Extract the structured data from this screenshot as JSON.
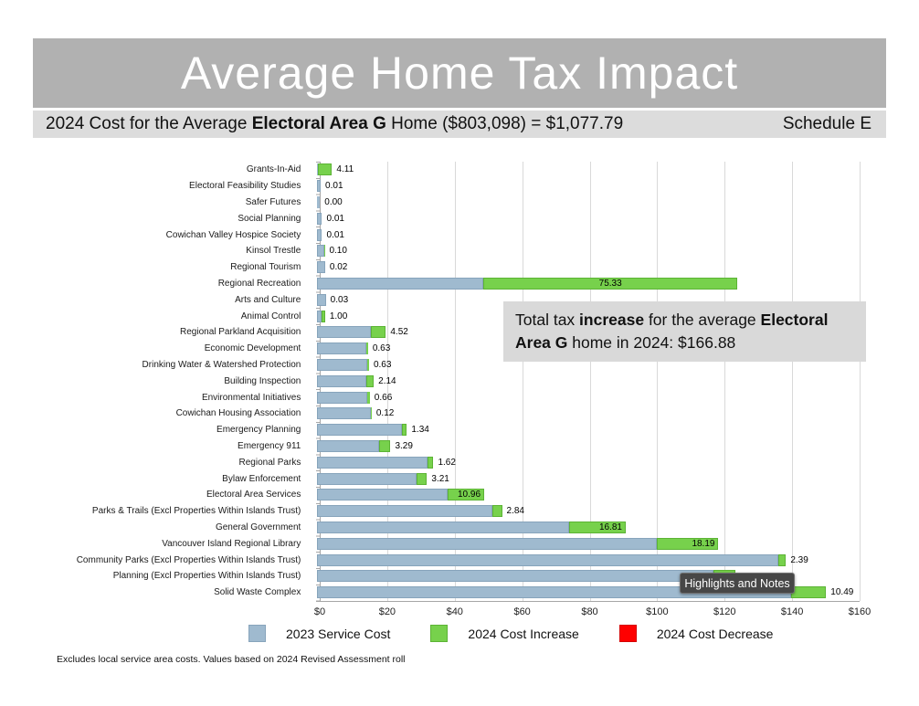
{
  "header": {
    "title": "Average Home Tax Impact"
  },
  "subtitle": {
    "pre": "2024 Cost for the Average ",
    "bold": "Electoral Area G",
    "post": " Home ($803,098) = $1,077.79",
    "right": "Schedule E"
  },
  "annotation": {
    "part1": "Total tax ",
    "bold1": "increase",
    "part2": " for the average ",
    "bold2": "Electoral Area G",
    "part3": " home in 2024: $166.88"
  },
  "tooltip": {
    "label": "Highlights and Notes"
  },
  "legend": {
    "items": [
      {
        "label": "2023 Service Cost",
        "color": "#9fbacf",
        "border": "#87a4bb"
      },
      {
        "label": "2024 Cost Increase",
        "color": "#77d14c",
        "border": "#5cb335"
      },
      {
        "label": "2024 Cost Decrease",
        "color": "#fe0000",
        "border": "#d40000"
      }
    ]
  },
  "footnote": "Excludes local service area costs. Values based on 2024 Revised Assessment roll",
  "chart_data": {
    "type": "bar",
    "orientation": "horizontal",
    "title": "Average Home Tax Impact",
    "xlim": [
      0,
      160
    ],
    "xtick_labels": [
      "$0",
      "$20",
      "$40",
      "$60",
      "$80",
      "$100",
      "$120",
      "$140",
      "$160"
    ],
    "grid": true,
    "legend_position": "bottom",
    "categories": [
      "Grants-In-Aid",
      "Electoral Feasibility Studies",
      "Safer Futures",
      "Social Planning",
      "Cowichan Valley Hospice Society",
      "Kinsol Trestle",
      "Regional Tourism",
      "Regional Recreation",
      "Arts and Culture",
      "Animal Control",
      "Regional Parkland Acquisition",
      "Economic Development",
      "Drinking Water & Watershed Protection",
      "Building Inspection",
      "Environmental Initiatives",
      "Cowichan Housing Association",
      "Emergency Planning",
      "Emergency 911",
      "Regional Parks",
      "Bylaw Enforcement",
      "Electoral Area Services",
      "Parks & Trails (Excl Properties Within Islands Trust)",
      "General Government",
      "Vancouver Island Regional Library",
      "Community Parks (Excl Properties Within Islands Trust)",
      "Planning (Excl Properties Within Islands Trust)",
      "Solid Waste Complex"
    ],
    "series": [
      {
        "name": "2023 Service Cost",
        "color": "#9fbacf",
        "values": [
          0.25,
          1.0,
          0.8,
          1.4,
          1.4,
          2.1,
          2.3,
          49.2,
          2.5,
          1.3,
          15.8,
          14.4,
          14.7,
          14.6,
          14.9,
          16.0,
          25.2,
          18.4,
          32.8,
          29.3,
          38.5,
          51.9,
          74.6,
          100.7,
          136.5,
          117.5,
          140.3
        ]
      },
      {
        "name": "2024 Cost Increase",
        "color": "#77d14c",
        "values": [
          4.11,
          0.01,
          0.0,
          0.01,
          0.01,
          0.1,
          0.02,
          75.33,
          0.03,
          1.0,
          4.52,
          0.63,
          0.63,
          2.14,
          0.66,
          0.12,
          1.34,
          3.29,
          1.62,
          3.21,
          10.96,
          2.84,
          16.81,
          18.19,
          2.39,
          6.42,
          10.49
        ]
      }
    ],
    "increase_value_labels": [
      "4.11",
      "0.01",
      "0.00",
      "0.01",
      "0.01",
      "0.10",
      "0.02",
      "75.33",
      "0.03",
      "1.00",
      "4.52",
      "0.63",
      "0.63",
      "2.14",
      "0.66",
      "0.12",
      "1.34",
      "3.29",
      "1.62",
      "3.21",
      "10.96",
      "2.84",
      "16.81",
      "18.19",
      "2.39",
      "",
      "10.49"
    ],
    "total_increase_note": "Total tax increase for the average Electoral Area G home in 2024: $166.88"
  }
}
